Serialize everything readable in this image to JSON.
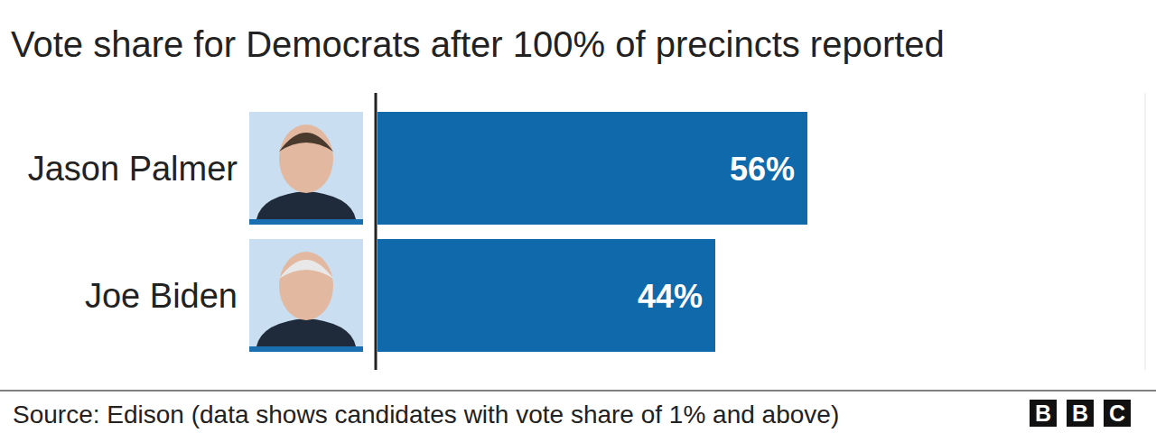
{
  "chart_data": {
    "type": "bar",
    "orientation": "horizontal",
    "title": "Vote share for Democrats after 100% of precincts reported",
    "categories": [
      "Jason Palmer",
      "Joe Biden"
    ],
    "values": [
      56,
      44
    ],
    "value_labels": [
      "56%",
      "44%"
    ],
    "color": "#0f69ab",
    "xlim": [
      0,
      100
    ],
    "tick_labels": false,
    "data_labels": true,
    "grid": false
  },
  "source": "Source: Edison (data shows candidates with vote share of 1% and above)",
  "logo": "BBC"
}
